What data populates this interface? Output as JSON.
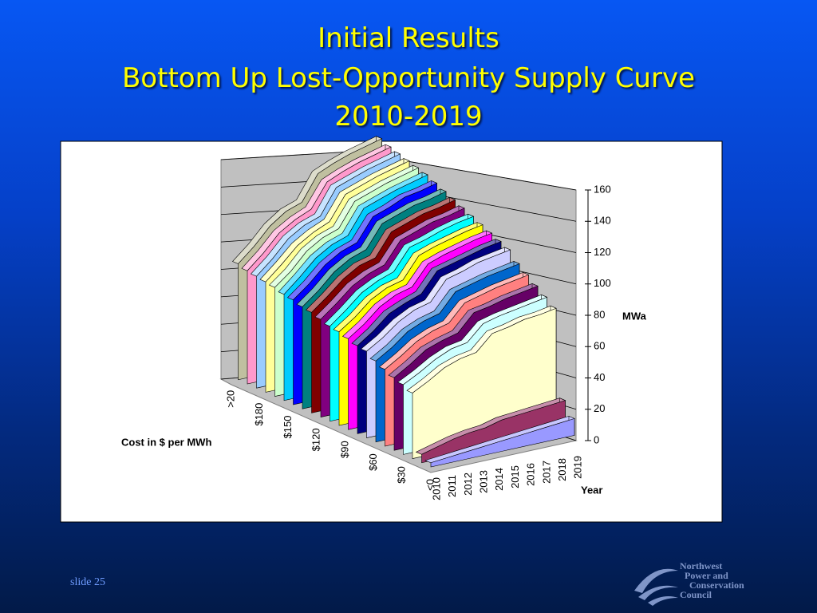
{
  "slide": {
    "title": [
      "Initial Results",
      "Bottom Up Lost-Opportunity Supply Curve",
      "2010-2019"
    ],
    "footer": "slide 25",
    "logo": [
      "Northwest",
      "Power and",
      "Conservation",
      "Council"
    ]
  },
  "chart_data": {
    "type": "area3d",
    "categories": [
      "2010",
      "2011",
      "2012",
      "2013",
      "2014",
      "2015",
      "2016",
      "2017",
      "2018",
      "2019"
    ],
    "depth_categories": [
      "<0",
      null,
      null,
      "$30",
      null,
      null,
      "$60",
      null,
      null,
      "$90",
      null,
      null,
      "$120",
      null,
      null,
      "$150",
      null,
      null,
      "$180",
      null,
      null,
      ">20"
    ],
    "xlabel": "Year",
    "ylabel": "MWa",
    "zlabel": "Cost in $ per MWh",
    "ylim": [
      0,
      160
    ],
    "yticks": [
      0,
      20,
      40,
      60,
      80,
      100,
      120,
      140,
      160
    ],
    "grid": true,
    "series": [
      {
        "color": "#9999ff",
        "values": [
          3,
          4,
          5,
          6,
          7,
          8,
          9,
          10,
          11,
          12
        ]
      },
      {
        "color": "#993366",
        "values": [
          6,
          9,
          12,
          14,
          15,
          18,
          19,
          20,
          21,
          22
        ]
      },
      {
        "color": "#ffffcc",
        "values": [
          47,
          53,
          60,
          64,
          66,
          77,
          79,
          82,
          83,
          85
        ]
      },
      {
        "color": "#ccffff",
        "values": [
          50,
          56,
          63,
          68,
          70,
          81,
          84,
          86,
          88,
          90
        ]
      },
      {
        "color": "#660066",
        "values": [
          52,
          59,
          67,
          71,
          74,
          86,
          88,
          91,
          93,
          95
        ]
      },
      {
        "color": "#ff8080",
        "values": [
          55,
          62,
          70,
          75,
          78,
          90,
          93,
          96,
          98,
          100
        ]
      },
      {
        "color": "#0066cc",
        "values": [
          58,
          65,
          74,
          79,
          82,
          95,
          98,
          101,
          103,
          105
        ]
      },
      {
        "color": "#ccccff",
        "values": [
          62,
          69,
          78,
          84,
          87,
          101,
          104,
          108,
          110,
          112
        ]
      },
      {
        "color": "#000080",
        "values": [
          63,
          71,
          81,
          86,
          90,
          104,
          107,
          110,
          113,
          115
        ]
      },
      {
        "color": "#ff00ff",
        "values": [
          65,
          73,
          83,
          89,
          92,
          106,
          110,
          113,
          116,
          118
        ]
      },
      {
        "color": "#ffff00",
        "values": [
          67,
          75,
          85,
          91,
          94,
          109,
          113,
          116,
          119,
          121
        ]
      },
      {
        "color": "#00ffff",
        "values": [
          68,
          77,
          87,
          93,
          97,
          112,
          115,
          119,
          122,
          124
        ]
      },
      {
        "color": "#800080",
        "values": [
          70,
          79,
          89,
          95,
          99,
          114,
          118,
          122,
          124,
          127
        ]
      },
      {
        "color": "#800000",
        "values": [
          72,
          81,
          91,
          98,
          101,
          117,
          121,
          125,
          127,
          130
        ]
      },
      {
        "color": "#008080",
        "values": [
          73,
          82,
          93,
          100,
          104,
          120,
          124,
          128,
          130,
          133
        ]
      },
      {
        "color": "#0000ff",
        "values": [
          75,
          84,
          95,
          102,
          106,
          122,
          126,
          131,
          133,
          136
        ]
      },
      {
        "color": "#00ccff",
        "values": [
          76,
          86,
          97,
          104,
          108,
          125,
          129,
          133,
          136,
          139
        ]
      },
      {
        "color": "#ccffcc",
        "values": [
          78,
          87,
          99,
          106,
          110,
          127,
          131,
          135,
          138,
          141
        ]
      },
      {
        "color": "#ffff99",
        "values": [
          79,
          89,
          100,
          107,
          112,
          129,
          133,
          137,
          140,
          143
        ]
      },
      {
        "color": "#99ccff",
        "values": [
          80,
          90,
          102,
          109,
          113,
          131,
          135,
          139,
          142,
          145
        ]
      },
      {
        "color": "#ff99cc",
        "values": [
          81,
          91,
          103,
          110,
          115,
          132,
          137,
          141,
          144,
          147
        ]
      },
      {
        "color": "#c0c0a0",
        "values": [
          83,
          93,
          105,
          113,
          117,
          135,
          140,
          144,
          147,
          150
        ]
      }
    ]
  }
}
